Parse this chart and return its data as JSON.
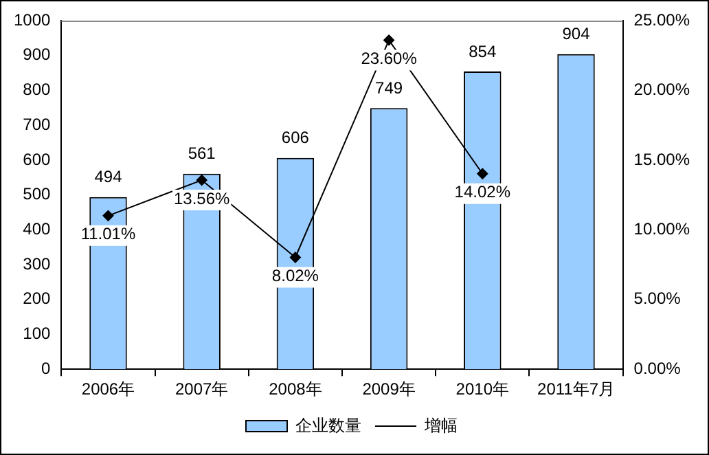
{
  "chart_data": {
    "type": "bar",
    "categories": [
      "2006年",
      "2007年",
      "2008年",
      "2009年",
      "2010年",
      "2011年7月"
    ],
    "series": [
      {
        "name": "企业数量",
        "color": "#99ccff",
        "values": [
          494,
          561,
          606,
          749,
          854,
          904
        ],
        "value_labels": [
          "494",
          "561",
          "606",
          "749",
          "854",
          "904"
        ]
      },
      {
        "name": "增幅",
        "type": "line",
        "axis": "y2",
        "color": "#000000",
        "marker": "diamond",
        "values": [
          11.01,
          13.56,
          8.02,
          23.6,
          14.02,
          null
        ],
        "value_labels": [
          "11.01%",
          "13.56%",
          "8.02%",
          "23.60%",
          "14.02%",
          null
        ]
      }
    ],
    "ylim": [
      0,
      1000
    ],
    "yticks": [
      0,
      100,
      200,
      300,
      400,
      500,
      600,
      700,
      800,
      900,
      1000
    ],
    "y2lim": [
      0,
      25
    ],
    "y2ticks": [
      {
        "value": 0,
        "label": "0.00%"
      },
      {
        "value": 5,
        "label": "5.00%"
      },
      {
        "value": 10,
        "label": "10.00%"
      },
      {
        "value": 15,
        "label": "15.00%"
      },
      {
        "value": 20,
        "label": "20.00%"
      },
      {
        "value": 25,
        "label": "25.00%"
      }
    ],
    "grid": false,
    "legend": "bottom"
  }
}
